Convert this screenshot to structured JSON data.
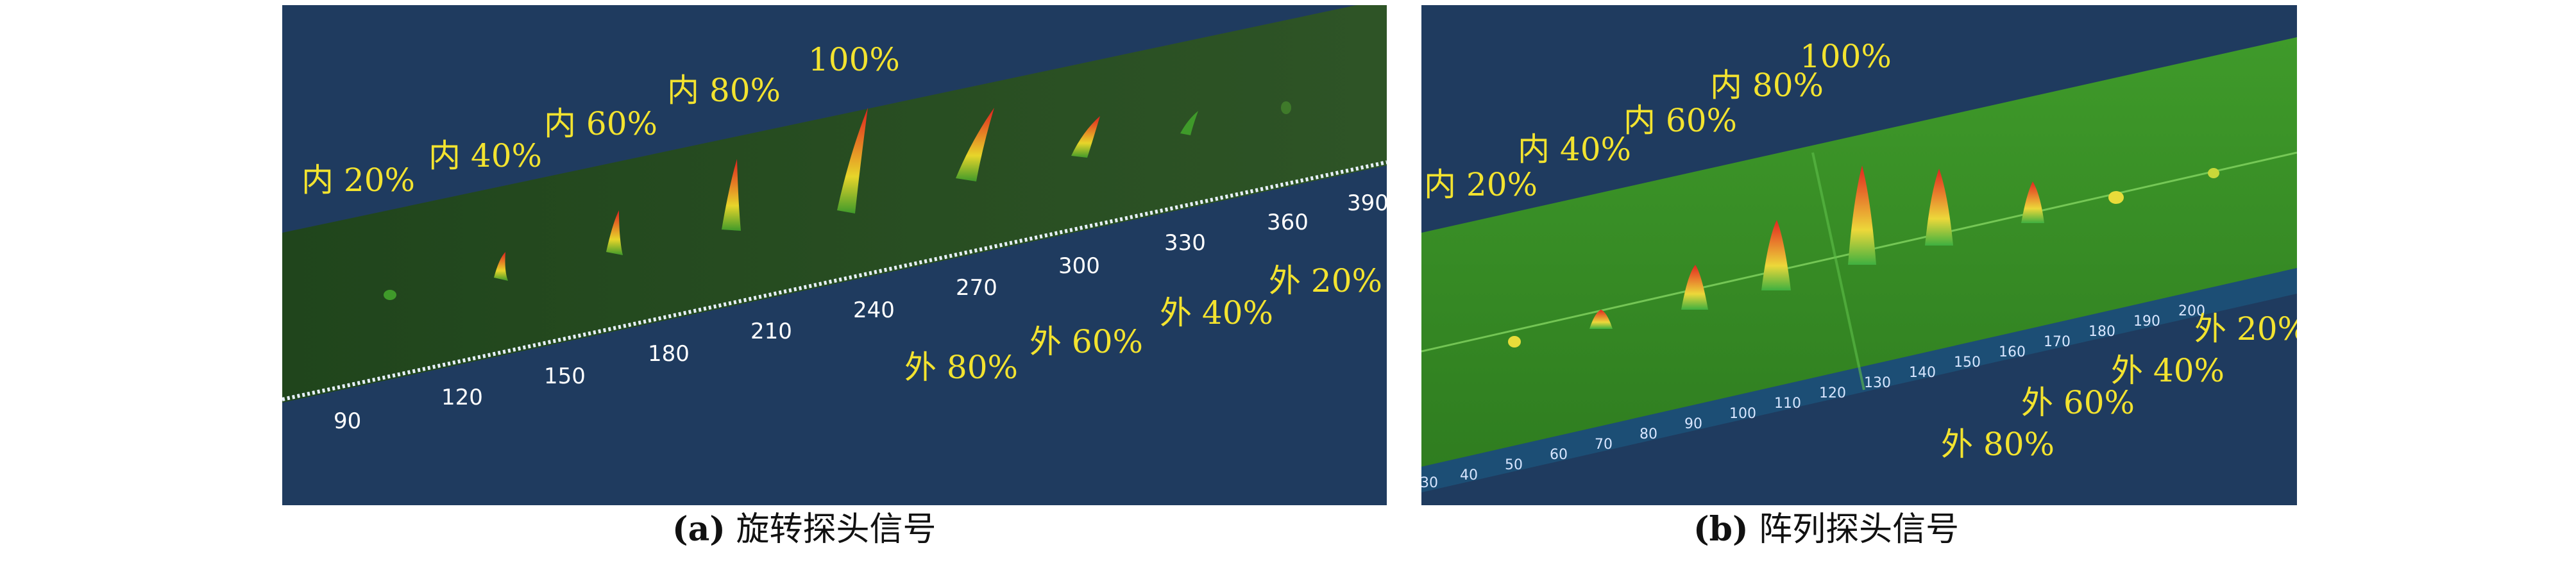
{
  "panel_a": {
    "caption_id": "(a)",
    "caption_text": "旋转探头信号",
    "inner_labels": [
      "内 20%",
      "内 40%",
      "内 60%",
      "内 80%",
      "100%"
    ],
    "outer_labels": [
      "外 80%",
      "外 60%",
      "外 40%",
      "外 20%"
    ],
    "axis_ticks": [
      "90",
      "120",
      "150",
      "180",
      "210",
      "240",
      "270",
      "300",
      "330",
      "360",
      "390"
    ]
  },
  "panel_b": {
    "caption_id": "(b)",
    "caption_text": "阵列探头信号",
    "inner_labels": [
      "内 20%",
      "内 40%",
      "内 60%",
      "内 80%",
      "100%"
    ],
    "outer_labels": [
      "外 80%",
      "外 60%",
      "外 40%",
      "外 20%"
    ],
    "axis_ticks": [
      "30",
      "40",
      "50",
      "60",
      "70",
      "80",
      "90",
      "100",
      "110",
      "120",
      "130",
      "140",
      "150",
      "160",
      "170",
      "180",
      "190",
      "200"
    ]
  },
  "colors": {
    "background": "#1f3b5f",
    "strip_a": "#234a1f",
    "strip_b": "#3c8f25",
    "label_yellow": "#f3e32f",
    "peak_red": "#e32222"
  }
}
